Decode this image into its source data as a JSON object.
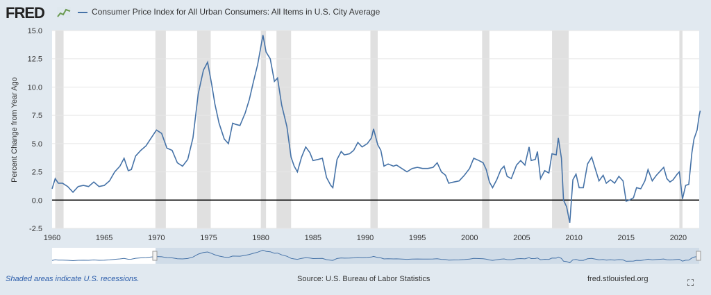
{
  "header": {
    "logo_text": "FRED",
    "legend_label": "Consumer Price Index for All Urban Consumers: All Items in U.S. City Average",
    "series_color": "#4572a7"
  },
  "footer": {
    "recession_note": "Shaded areas indicate U.S. recessions.",
    "source": "Source: U.S. Bureau of Labor Statistics",
    "site": "fred.stlouisfed.org",
    "fullscreen_icon": "fullscreen-icon"
  },
  "chart_data": {
    "type": "line",
    "title": "Consumer Price Index for All Urban Consumers: All Items in U.S. City Average",
    "ylabel": "Percent Change from Year Ago",
    "xlabel": "",
    "xlim": [
      1960,
      2022
    ],
    "ylim": [
      -2.5,
      15.0
    ],
    "yticks": [
      "-2.5",
      "0.0",
      "2.5",
      "5.0",
      "7.5",
      "10.0",
      "12.5",
      "15.0"
    ],
    "xticks": [
      "1960",
      "1965",
      "1970",
      "1975",
      "1980",
      "1985",
      "1990",
      "1995",
      "2000",
      "2005",
      "2010",
      "2015",
      "2020"
    ],
    "grid": true,
    "recessions": [
      [
        1960.3,
        1961.1
      ],
      [
        1969.9,
        1970.9
      ],
      [
        1973.9,
        1975.2
      ],
      [
        1980.0,
        1980.5
      ],
      [
        1981.5,
        1982.9
      ],
      [
        1990.5,
        1991.2
      ],
      [
        2001.2,
        2001.9
      ],
      [
        2007.9,
        2009.5
      ],
      [
        2020.1,
        2020.4
      ]
    ],
    "series": [
      {
        "color": "#4572a7",
        "points": [
          [
            1960.0,
            1.0
          ],
          [
            1960.3,
            1.9
          ],
          [
            1960.6,
            1.5
          ],
          [
            1961.0,
            1.5
          ],
          [
            1961.5,
            1.2
          ],
          [
            1962.0,
            0.7
          ],
          [
            1962.5,
            1.2
          ],
          [
            1963.0,
            1.3
          ],
          [
            1963.5,
            1.2
          ],
          [
            1964.0,
            1.6
          ],
          [
            1964.5,
            1.2
          ],
          [
            1965.0,
            1.3
          ],
          [
            1965.5,
            1.7
          ],
          [
            1966.0,
            2.5
          ],
          [
            1966.5,
            3.0
          ],
          [
            1966.9,
            3.7
          ],
          [
            1967.3,
            2.6
          ],
          [
            1967.6,
            2.7
          ],
          [
            1968.0,
            3.9
          ],
          [
            1968.5,
            4.4
          ],
          [
            1969.0,
            4.8
          ],
          [
            1969.5,
            5.5
          ],
          [
            1970.0,
            6.2
          ],
          [
            1970.5,
            5.9
          ],
          [
            1971.0,
            4.6
          ],
          [
            1971.5,
            4.4
          ],
          [
            1972.0,
            3.3
          ],
          [
            1972.5,
            3.0
          ],
          [
            1973.0,
            3.6
          ],
          [
            1973.5,
            5.5
          ],
          [
            1974.0,
            9.4
          ],
          [
            1974.5,
            11.5
          ],
          [
            1974.9,
            12.2
          ],
          [
            1975.3,
            10.2
          ],
          [
            1975.6,
            8.5
          ],
          [
            1976.0,
            6.8
          ],
          [
            1976.5,
            5.4
          ],
          [
            1976.9,
            5.0
          ],
          [
            1977.3,
            6.8
          ],
          [
            1977.6,
            6.7
          ],
          [
            1978.0,
            6.6
          ],
          [
            1978.5,
            7.7
          ],
          [
            1978.9,
            8.9
          ],
          [
            1979.3,
            10.5
          ],
          [
            1979.7,
            12.0
          ],
          [
            1980.2,
            14.6
          ],
          [
            1980.5,
            13.1
          ],
          [
            1980.9,
            12.5
          ],
          [
            1981.3,
            10.5
          ],
          [
            1981.6,
            10.8
          ],
          [
            1982.0,
            8.4
          ],
          [
            1982.5,
            6.5
          ],
          [
            1982.9,
            3.8
          ],
          [
            1983.2,
            3.0
          ],
          [
            1983.5,
            2.5
          ],
          [
            1983.9,
            3.8
          ],
          [
            1984.3,
            4.7
          ],
          [
            1984.7,
            4.2
          ],
          [
            1985.0,
            3.5
          ],
          [
            1985.5,
            3.6
          ],
          [
            1985.9,
            3.7
          ],
          [
            1986.3,
            2.0
          ],
          [
            1986.7,
            1.3
          ],
          [
            1986.9,
            1.1
          ],
          [
            1987.3,
            3.6
          ],
          [
            1987.7,
            4.3
          ],
          [
            1988.0,
            4.0
          ],
          [
            1988.5,
            4.1
          ],
          [
            1988.9,
            4.4
          ],
          [
            1989.3,
            5.1
          ],
          [
            1989.7,
            4.7
          ],
          [
            1990.2,
            5.0
          ],
          [
            1990.6,
            5.5
          ],
          [
            1990.8,
            6.3
          ],
          [
            1991.2,
            4.9
          ],
          [
            1991.5,
            4.4
          ],
          [
            1991.8,
            3.0
          ],
          [
            1992.2,
            3.2
          ],
          [
            1992.7,
            3.0
          ],
          [
            1993.0,
            3.1
          ],
          [
            1993.5,
            2.8
          ],
          [
            1994.0,
            2.5
          ],
          [
            1994.5,
            2.8
          ],
          [
            1995.0,
            2.9
          ],
          [
            1995.5,
            2.8
          ],
          [
            1996.0,
            2.8
          ],
          [
            1996.5,
            2.9
          ],
          [
            1996.9,
            3.3
          ],
          [
            1997.3,
            2.5
          ],
          [
            1997.7,
            2.2
          ],
          [
            1998.0,
            1.5
          ],
          [
            1998.5,
            1.6
          ],
          [
            1999.0,
            1.7
          ],
          [
            1999.5,
            2.2
          ],
          [
            2000.0,
            2.8
          ],
          [
            2000.4,
            3.7
          ],
          [
            2000.9,
            3.5
          ],
          [
            2001.3,
            3.3
          ],
          [
            2001.6,
            2.7
          ],
          [
            2001.9,
            1.6
          ],
          [
            2002.2,
            1.1
          ],
          [
            2002.6,
            1.8
          ],
          [
            2003.0,
            2.7
          ],
          [
            2003.3,
            3.0
          ],
          [
            2003.6,
            2.1
          ],
          [
            2004.0,
            1.9
          ],
          [
            2004.5,
            3.1
          ],
          [
            2004.9,
            3.5
          ],
          [
            2005.3,
            3.1
          ],
          [
            2005.7,
            4.7
          ],
          [
            2005.9,
            3.5
          ],
          [
            2006.3,
            3.6
          ],
          [
            2006.5,
            4.3
          ],
          [
            2006.8,
            1.9
          ],
          [
            2007.2,
            2.6
          ],
          [
            2007.6,
            2.4
          ],
          [
            2007.9,
            4.1
          ],
          [
            2008.3,
            4.0
          ],
          [
            2008.5,
            5.5
          ],
          [
            2008.8,
            3.7
          ],
          [
            2009.0,
            0.0
          ],
          [
            2009.3,
            -0.6
          ],
          [
            2009.6,
            -2.0
          ],
          [
            2009.9,
            1.8
          ],
          [
            2010.2,
            2.3
          ],
          [
            2010.5,
            1.1
          ],
          [
            2010.9,
            1.1
          ],
          [
            2011.3,
            3.2
          ],
          [
            2011.7,
            3.8
          ],
          [
            2012.0,
            2.9
          ],
          [
            2012.4,
            1.7
          ],
          [
            2012.8,
            2.2
          ],
          [
            2013.1,
            1.5
          ],
          [
            2013.5,
            1.8
          ],
          [
            2013.9,
            1.5
          ],
          [
            2014.3,
            2.1
          ],
          [
            2014.7,
            1.7
          ],
          [
            2015.0,
            -0.1
          ],
          [
            2015.3,
            0.0
          ],
          [
            2015.7,
            0.2
          ],
          [
            2016.0,
            1.1
          ],
          [
            2016.4,
            1.0
          ],
          [
            2016.8,
            1.7
          ],
          [
            2017.1,
            2.7
          ],
          [
            2017.5,
            1.7
          ],
          [
            2017.9,
            2.2
          ],
          [
            2018.3,
            2.6
          ],
          [
            2018.6,
            2.9
          ],
          [
            2018.9,
            1.9
          ],
          [
            2019.2,
            1.6
          ],
          [
            2019.5,
            1.8
          ],
          [
            2019.9,
            2.3
          ],
          [
            2020.1,
            2.5
          ],
          [
            2020.4,
            0.1
          ],
          [
            2020.7,
            1.3
          ],
          [
            2021.0,
            1.4
          ],
          [
            2021.3,
            4.2
          ],
          [
            2021.5,
            5.4
          ],
          [
            2021.8,
            6.2
          ],
          [
            2022.0,
            7.5
          ],
          [
            2022.1,
            7.9
          ]
        ]
      }
    ]
  }
}
